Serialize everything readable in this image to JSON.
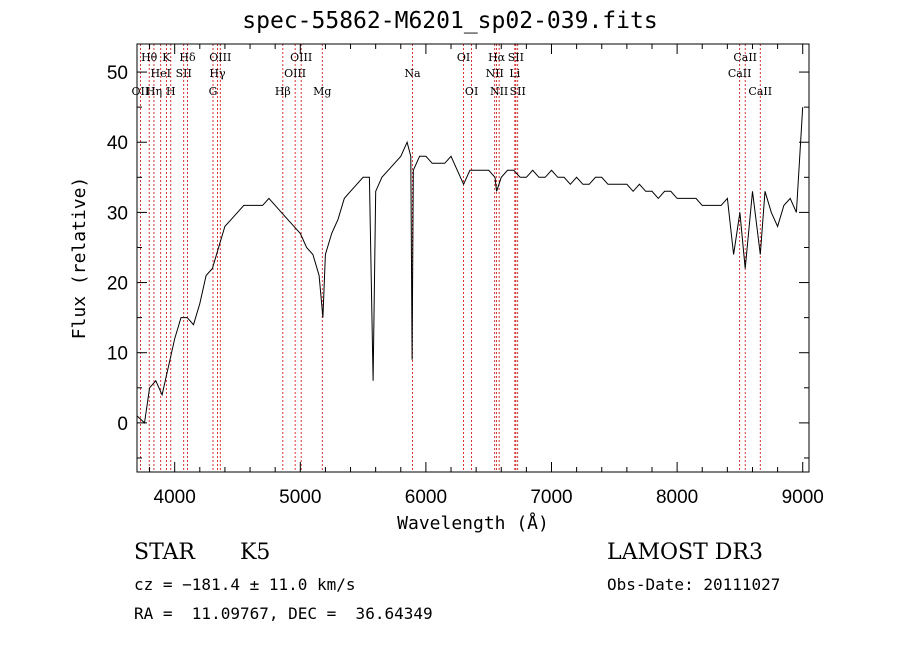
{
  "chart_data": {
    "type": "line",
    "title": "spec-55862-M6201_sp02-039.fits",
    "xlabel": "Wavelength (Å)",
    "ylabel": "Flux (relative)",
    "xlim": [
      3700,
      9050
    ],
    "ylim": [
      -7,
      54
    ],
    "xticks": [
      4000,
      5000,
      6000,
      7000,
      8000,
      9000
    ],
    "yticks": [
      0,
      10,
      20,
      30,
      40,
      50
    ],
    "series": [
      {
        "name": "spectrum",
        "x": [
          3700,
          3760,
          3800,
          3850,
          3900,
          3950,
          4000,
          4050,
          4100,
          4150,
          4200,
          4250,
          4300,
          4350,
          4400,
          4450,
          4500,
          4550,
          4600,
          4650,
          4700,
          4750,
          4800,
          4850,
          4900,
          4950,
          5000,
          5050,
          5100,
          5150,
          5180,
          5200,
          5250,
          5300,
          5350,
          5400,
          5450,
          5500,
          5550,
          5580,
          5600,
          5650,
          5700,
          5750,
          5800,
          5850,
          5880,
          5890,
          5900,
          5950,
          6000,
          6050,
          6100,
          6150,
          6200,
          6250,
          6300,
          6350,
          6400,
          6450,
          6500,
          6550,
          6563,
          6600,
          6650,
          6700,
          6750,
          6800,
          6850,
          6900,
          6950,
          7000,
          7050,
          7100,
          7150,
          7200,
          7250,
          7300,
          7350,
          7400,
          7450,
          7500,
          7550,
          7600,
          7650,
          7700,
          7750,
          7800,
          7850,
          7900,
          7950,
          8000,
          8050,
          8100,
          8150,
          8200,
          8250,
          8300,
          8350,
          8400,
          8450,
          8500,
          8542,
          8600,
          8662,
          8700,
          8750,
          8800,
          8850,
          8900,
          8950,
          9000
        ],
        "y": [
          1,
          0,
          5,
          6,
          4,
          8,
          12,
          15,
          15,
          14,
          17,
          21,
          22,
          25,
          28,
          29,
          30,
          31,
          31,
          31,
          31,
          32,
          31,
          30,
          29,
          28,
          27,
          25,
          24,
          21,
          15,
          24,
          27,
          29,
          32,
          33,
          34,
          35,
          35,
          6,
          33,
          35,
          36,
          37,
          38,
          40,
          38,
          9,
          36,
          38,
          38,
          37,
          37,
          37,
          38,
          36,
          34,
          36,
          36,
          36,
          36,
          35,
          33,
          35,
          36,
          36,
          35,
          35,
          36,
          35,
          35,
          36,
          35,
          35,
          34,
          35,
          34,
          34,
          35,
          35,
          34,
          34,
          34,
          34,
          33,
          34,
          33,
          33,
          32,
          33,
          33,
          32,
          32,
          32,
          32,
          31,
          31,
          31,
          31,
          32,
          24,
          30,
          22,
          33,
          24,
          33,
          30,
          28,
          31,
          32,
          30,
          45
        ]
      }
    ],
    "line_markers": [
      {
        "label": "Hθ",
        "x": 3797,
        "row": 1
      },
      {
        "label": "OII",
        "x": 3727,
        "row": 3
      },
      {
        "label": "K",
        "x": 3934,
        "row": 1
      },
      {
        "label": "HeI",
        "x": 3889,
        "row": 2
      },
      {
        "label": "Hη",
        "x": 3835,
        "row": 3
      },
      {
        "label": "Hδ",
        "x": 4102,
        "row": 1
      },
      {
        "label": "SII",
        "x": 4072,
        "row": 2
      },
      {
        "label": "H",
        "x": 3969,
        "row": 3
      },
      {
        "label": "OIII",
        "x": 4363,
        "row": 1
      },
      {
        "label": "Hγ",
        "x": 4341,
        "row": 2
      },
      {
        "label": "G",
        "x": 4305,
        "row": 3
      },
      {
        "label": "OIII",
        "x": 5007,
        "row": 1
      },
      {
        "label": "OIII",
        "x": 4959,
        "row": 2
      },
      {
        "label": "Hβ",
        "x": 4861,
        "row": 3
      },
      {
        "label": "Mg",
        "x": 5175,
        "row": 3
      },
      {
        "label": "Na",
        "x": 5893,
        "row": 2
      },
      {
        "label": "OI",
        "x": 6300,
        "row": 1
      },
      {
        "label": "OI",
        "x": 6364,
        "row": 3
      },
      {
        "label": "Hα",
        "x": 6563,
        "row": 1
      },
      {
        "label": "NII",
        "x": 6548,
        "row": 2
      },
      {
        "label": "NII",
        "x": 6583,
        "row": 3
      },
      {
        "label": "SII",
        "x": 6716,
        "row": 1
      },
      {
        "label": "Li",
        "x": 6708,
        "row": 2
      },
      {
        "label": "SII",
        "x": 6731,
        "row": 3
      },
      {
        "label": "CaII",
        "x": 8542,
        "row": 1
      },
      {
        "label": "CaII",
        "x": 8498,
        "row": 2
      },
      {
        "label": "CaII",
        "x": 8662,
        "row": 3
      }
    ]
  },
  "info": {
    "class_label": "STAR",
    "subclass": "K5",
    "survey": "LAMOST DR3",
    "cz_text": "cz = −181.4 ± 11.0 km/s",
    "obs_date": "Obs-Date: 20111027",
    "coords": "RA =  11.09767, DEC =  36.64349"
  },
  "colors": {
    "marker": "#cc0000",
    "line": "#000000"
  }
}
